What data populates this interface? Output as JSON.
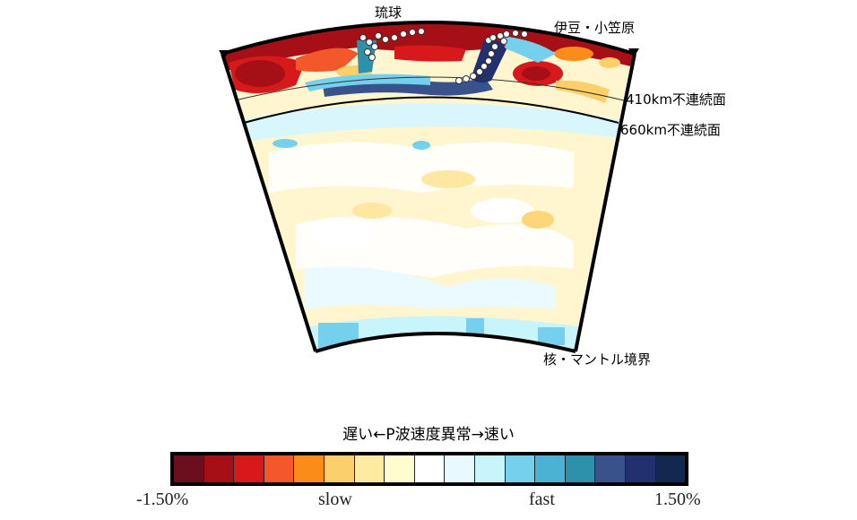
{
  "labels": {
    "ryukyu": "琉球",
    "izu": "伊豆・小笠原",
    "d410": "410km不連続面",
    "d660": "660km不連続面",
    "cmb": "核・マントル境界"
  },
  "colorbar": {
    "title": "遅い←P波速度異常→速い",
    "min_label": "-1.50%",
    "max_label": "1.50%",
    "slow_label": "slow",
    "fast_label": "fast",
    "colors": [
      "#6b0e1e",
      "#a50f15",
      "#d7191c",
      "#f4582a",
      "#fb8c1a",
      "#fdcf6a",
      "#feeaa0",
      "#fffcd0",
      "#ffffff",
      "#e8faff",
      "#c8f4fb",
      "#74d0ec",
      "#4bb2d3",
      "#2e91ab",
      "#3a528b",
      "#23306f",
      "#13284f"
    ]
  }
}
